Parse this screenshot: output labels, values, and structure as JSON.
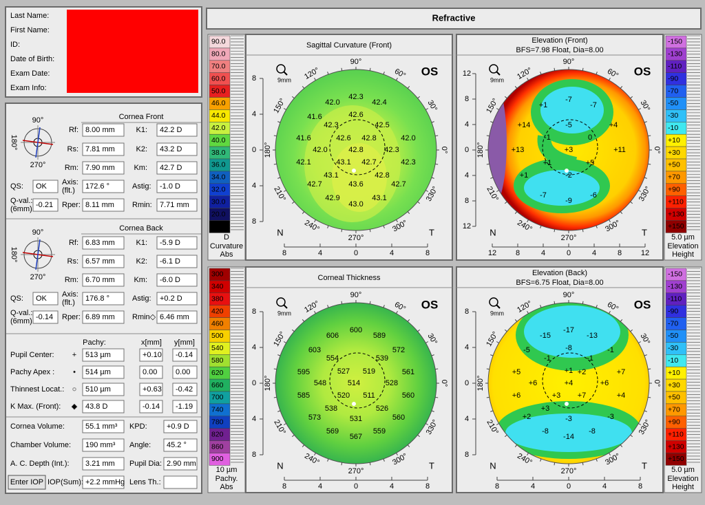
{
  "header": {
    "title": "Refractive"
  },
  "patient": {
    "labels": [
      "Last Name:",
      "First Name:",
      "ID:",
      "Date of Birth:",
      "Exam Date:",
      "Exam Info:"
    ]
  },
  "cornea_front": {
    "title": "Cornea Front",
    "dial": [
      "90°",
      "180°",
      "270°"
    ],
    "fields": [
      {
        "label": [
          "Rf:"
        ],
        "value": "8.00 mm"
      },
      {
        "label": [
          "K1:"
        ],
        "value": "42.2 D"
      },
      {
        "label": [
          "Rs:"
        ],
        "value": "7.81 mm"
      },
      {
        "label": [
          "K2:"
        ],
        "value": "43.2 D"
      },
      {
        "label": [
          "Rm:"
        ],
        "value": "7.90 mm"
      },
      {
        "label": [
          "Km:"
        ],
        "value": "42.7 D"
      },
      {
        "label": [
          "QS:"
        ],
        "value": "OK"
      },
      {
        "label": [
          "Axis:",
          "(flt.)"
        ],
        "value": "172.6 °"
      },
      {
        "label": [
          "Astig:"
        ],
        "value": "-1.0 D"
      },
      {
        "label": [
          "Q-val.:",
          "(6mm)"
        ],
        "value": "-0.21"
      },
      {
        "label": [
          "Rper:"
        ],
        "value": "8.11 mm"
      },
      {
        "label": [
          "Rmin:"
        ],
        "value": "7.71 mm"
      }
    ]
  },
  "cornea_back": {
    "title": "Cornea Back",
    "dial": [
      "90°",
      "180°",
      "270°"
    ],
    "fields": [
      {
        "label": [
          "Rf:"
        ],
        "value": "6.83 mm"
      },
      {
        "label": [
          "K1:"
        ],
        "value": "-5.9 D"
      },
      {
        "label": [
          "Rs:"
        ],
        "value": "6.57 mm"
      },
      {
        "label": [
          "K2:"
        ],
        "value": "-6.1 D"
      },
      {
        "label": [
          "Rm:"
        ],
        "value": "6.70 mm"
      },
      {
        "label": [
          "Km:"
        ],
        "value": "-6.0 D"
      },
      {
        "label": [
          "QS:"
        ],
        "value": "OK"
      },
      {
        "label": [
          "Axis:",
          "(flt.)"
        ],
        "value": "176.8 °"
      },
      {
        "label": [
          "Astig:"
        ],
        "value": "+0.2 D"
      },
      {
        "label": [
          "Q-val.:",
          "(6mm)"
        ],
        "value": "-0.14"
      },
      {
        "label": [
          "Rper:"
        ],
        "value": "6.89 mm"
      },
      {
        "label": [
          "Rmin◇"
        ],
        "value": "6.46 mm"
      }
    ]
  },
  "pachy": {
    "headers": [
      "Pachy:",
      "x[mm]",
      "y[mm]"
    ],
    "rows": [
      {
        "label": "Pupil Center:",
        "symbol": "+",
        "value": "513 µm",
        "x": "+0.10",
        "y": "-0.14"
      },
      {
        "label": "Pachy Apex :",
        "symbol": "•",
        "value": "514 µm",
        "x": "0.00",
        "y": "0.00"
      },
      {
        "label": "Thinnest Locat.:",
        "symbol": "○",
        "value": "510 µm",
        "x": "+0.63",
        "y": "-0.42"
      },
      {
        "label": "K Max. (Front):",
        "symbol": "◆",
        "value": "43.8 D",
        "x": "-0.14",
        "y": "-1.19"
      }
    ]
  },
  "summary": {
    "rows": [
      {
        "label": "Cornea Volume:",
        "value": "55.1 mm³",
        "label2": "KPD:",
        "value2": "+0.9 D"
      },
      {
        "label": "Chamber Volume:",
        "value": "190 mm³",
        "label2": "Angle:",
        "value2": "45.2 °"
      },
      {
        "label": "A. C. Depth (Int.):",
        "value": "3.21 mm",
        "label2": "Pupil Dia:",
        "value2": "2.90 mm"
      },
      {
        "button": "Enter IOP",
        "label": "IOP(Sum):",
        "value": "+2.2 mmHg",
        "label2": "Lens Th.:"
      }
    ]
  },
  "maps": [
    {
      "title": "Sagittal Curvature (Front)",
      "eye": "OS",
      "zoom": "9mm",
      "nasal": "N",
      "temporal": "T",
      "angles": [
        "0°",
        "30°",
        "60°",
        "90°",
        "120°",
        "150°",
        "180°",
        "210°",
        "240°",
        "270°",
        "300°",
        "330°"
      ],
      "x_ticks": [
        "8",
        "4",
        "0",
        "4",
        "8"
      ],
      "y_ticks": [
        "8",
        "4",
        "0",
        "4",
        "8"
      ],
      "values": [
        "42.3",
        "42.0",
        "42.4",
        "42.6",
        "41.6",
        "42.3",
        "42.5",
        "41.6",
        "42.6",
        "42.8",
        "42.0",
        "42.0",
        "42.8",
        "42.3",
        "42.1",
        "43.1",
        "42.7",
        "42.3",
        "43.1",
        "42.8",
        "42.7",
        "43.6",
        "42.7",
        "42.9",
        "43.1",
        "43.0"
      ],
      "scale": {
        "labels": [
          "90.0",
          "80.0",
          "70.0",
          "60.0",
          "50.0",
          "46.0",
          "44.0",
          "42.0",
          "40.0",
          "38.0",
          "36.0",
          "34.0",
          "32.0",
          "30.0",
          "20.0",
          "10.0"
        ],
        "colors": [
          "#f4d8dc",
          "#f0a8b8",
          "#f08080",
          "#f05050",
          "#e82020",
          "#f8a000",
          "#f8e800",
          "#c8f040",
          "#60d840",
          "#30b878",
          "#109890",
          "#1060c0",
          "#1040d0",
          "#1020a0",
          "#101060",
          "#000000"
        ],
        "unit": "D",
        "name": "Curvature",
        "mode": "Abs"
      }
    },
    {
      "title": "Elevation (Front)",
      "subtitle": "BFS=7.98 Float, Dia=8.00",
      "eye": "OS",
      "zoom": "9mm",
      "nasal": "N",
      "temporal": "T",
      "angles": [
        "0°",
        "30°",
        "60°",
        "90°",
        "120°",
        "150°",
        "180°",
        "210°",
        "240°",
        "270°",
        "300°",
        "330°"
      ],
      "x_ticks": [
        "12",
        "8",
        "4",
        "0",
        "4",
        "8",
        "12"
      ],
      "y_ticks": [
        "12",
        "8",
        "4",
        "0",
        "4",
        "8",
        "12"
      ],
      "values": [
        "-7",
        "-7",
        "+1",
        "+14",
        "-5",
        "+4",
        "-1",
        "0",
        "+13",
        "+3",
        "+11",
        "+1",
        "+5",
        "+1",
        "-2",
        "-7",
        "-9",
        "-6"
      ],
      "scale": {
        "labels": [
          "-150",
          "-130",
          "-110",
          "-90",
          "-70",
          "-50",
          "-30",
          "-10",
          "+10",
          "+30",
          "+50",
          "+70",
          "+90",
          "+110",
          "+130",
          "+150"
        ],
        "colors": [
          "#d070e0",
          "#a040d0",
          "#6020c0",
          "#3030e0",
          "#2060f0",
          "#2090f8",
          "#30c0f8",
          "#40e8f0",
          "#fff000",
          "#ffd800",
          "#ffc000",
          "#ff9800",
          "#ff6000",
          "#ff2000",
          "#d00000",
          "#900000"
        ],
        "unit": "5.0 µm",
        "name": "Elevation",
        "mode": "Height"
      }
    },
    {
      "title": "Corneal Thickness",
      "eye": "OS",
      "zoom": "9mm",
      "nasal": "N",
      "temporal": "T",
      "angles": [
        "0°",
        "30°",
        "60°",
        "90°",
        "120°",
        "150°",
        "180°",
        "210°",
        "240°",
        "270°",
        "300°",
        "330°"
      ],
      "x_ticks": [
        "8",
        "4",
        "0",
        "4",
        "8"
      ],
      "y_ticks": [
        "8",
        "4",
        "0",
        "4",
        "8"
      ],
      "values": [
        "600",
        "606",
        "589",
        "603",
        "572",
        "554",
        "539",
        "595",
        "527",
        "519",
        "561",
        "548",
        "514",
        "528",
        "585",
        "520",
        "511",
        "560",
        "538",
        "526",
        "573",
        "531",
        "560",
        "569",
        "559",
        "567"
      ],
      "scale": {
        "labels": [
          "300",
          "340",
          "380",
          "420",
          "460",
          "500",
          "540",
          "580",
          "620",
          "660",
          "700",
          "740",
          "780",
          "820",
          "860",
          "900"
        ],
        "colors": [
          "#a00000",
          "#d00000",
          "#e81010",
          "#f04000",
          "#f08000",
          "#f8d000",
          "#e0f020",
          "#a0e030",
          "#50d040",
          "#20b060",
          "#10a0a0",
          "#1070d0",
          "#1040c0",
          "#702090",
          "#a040a0",
          "#e060e0"
        ],
        "unit": "10 µm",
        "name": "Pachy.",
        "mode": "Abs"
      }
    },
    {
      "title": "Elevation (Back)",
      "subtitle": "BFS=6.75 Float, Dia=8.00",
      "eye": "OS",
      "zoom": "9mm",
      "nasal": "N",
      "temporal": "T",
      "angles": [
        "0°",
        "30°",
        "60°",
        "90°",
        "120°",
        "150°",
        "180°",
        "210°",
        "240°",
        "270°",
        "300°",
        "330°"
      ],
      "x_ticks": [
        "8",
        "4",
        "0",
        "4",
        "8"
      ],
      "y_ticks": [
        "8",
        "4",
        "0",
        "4",
        "8"
      ],
      "values": [
        "-17",
        "-15",
        "-13",
        "-5",
        "-8",
        "-1",
        "-1",
        "-1",
        "+5",
        "+1",
        "+2",
        "+7",
        "+6",
        "+4",
        "+6",
        "+6",
        "+3",
        "+7",
        "+4",
        "+2",
        "+3",
        "-3",
        "-3",
        "-8",
        "-14",
        "-8"
      ],
      "scale": {
        "labels": [
          "-150",
          "-130",
          "-110",
          "-90",
          "-70",
          "-50",
          "-30",
          "-10",
          "+10",
          "+30",
          "+50",
          "+70",
          "+90",
          "+110",
          "+130",
          "+150"
        ],
        "colors": [
          "#d070e0",
          "#a040d0",
          "#6020c0",
          "#3030e0",
          "#2060f0",
          "#2090f8",
          "#30c0f8",
          "#40e8f0",
          "#fff000",
          "#ffd800",
          "#ffc000",
          "#ff9800",
          "#ff6000",
          "#ff2000",
          "#d00000",
          "#900000"
        ],
        "unit": "5.0 µm",
        "name": "Elevation",
        "mode": "Height"
      }
    }
  ]
}
